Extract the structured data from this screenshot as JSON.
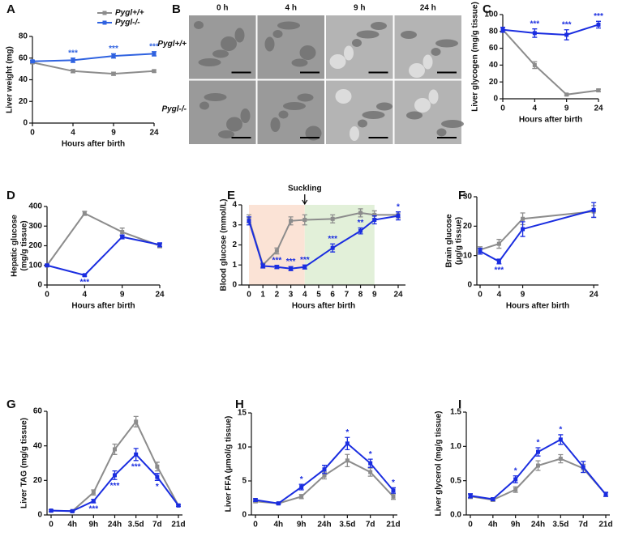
{
  "chart_data": [
    {
      "type": "line",
      "label": "A",
      "ylabel": "Liver weight (mg)",
      "xlabel": "Hours after birth",
      "categories": [
        "0",
        "4",
        "9",
        "24"
      ],
      "ylim": [
        0,
        80
      ],
      "yticks": [
        0,
        20,
        40,
        60,
        80
      ],
      "legend": "top-right",
      "sig_position": "above",
      "series": [
        {
          "name": "Pygl+/+",
          "color": "#8c8c8c",
          "values": [
            56,
            48,
            45.5,
            48
          ],
          "errors": [
            1,
            1.5,
            1.5,
            1
          ],
          "significance": [
            null,
            null,
            null,
            null
          ]
        },
        {
          "name": "Pygl-/-",
          "color": "#2f62e0",
          "values": [
            57,
            58,
            62,
            64
          ],
          "errors": [
            1,
            2,
            2,
            2
          ],
          "significance": [
            null,
            "***",
            "***",
            "***"
          ]
        }
      ]
    },
    {
      "type": "image_grid",
      "label": "B",
      "column_labels": [
        "0 h",
        "4 h",
        "9 h",
        "24 h"
      ],
      "row_labels": [
        "Pygl+/+",
        "Pygl-/-"
      ]
    },
    {
      "type": "line",
      "label": "C",
      "ylabel": "Liver glycogen (mg/g tissue)",
      "xlabel": "Hours after birth",
      "categories": [
        "0",
        "4",
        "9",
        "24"
      ],
      "ylim": [
        0,
        100
      ],
      "yticks": [
        0,
        20,
        40,
        60,
        80,
        100
      ],
      "sig_position": "above",
      "series": [
        {
          "name": "Pygl+/+",
          "color": "#8c8c8c",
          "values": [
            82,
            40,
            5,
            10
          ],
          "errors": [
            3,
            4,
            1,
            1.5
          ],
          "significance": [
            null,
            null,
            null,
            null
          ]
        },
        {
          "name": "Pygl-/-",
          "color": "#1a2de0",
          "values": [
            82,
            78,
            76,
            88
          ],
          "errors": [
            3,
            5,
            6,
            4
          ],
          "significance": [
            null,
            "***",
            "***",
            "***"
          ]
        }
      ]
    },
    {
      "type": "line",
      "label": "D",
      "ylabel": [
        "Hepatic glucose",
        "(mg/g tissue)"
      ],
      "xlabel": "Hours after birth",
      "categories": [
        "0",
        "4",
        "9",
        "24"
      ],
      "ylim": [
        0,
        400
      ],
      "yticks": [
        0,
        100,
        200,
        300,
        400
      ],
      "sig_position": "below",
      "series": [
        {
          "name": "Pygl+/+",
          "color": "#8c8c8c",
          "values": [
            100,
            365,
            270,
            200
          ],
          "errors": [
            5,
            10,
            20,
            10
          ],
          "significance": [
            null,
            null,
            null,
            null
          ]
        },
        {
          "name": "Pygl-/-",
          "color": "#1a2de0",
          "values": [
            100,
            50,
            245,
            205
          ],
          "errors": [
            5,
            5,
            10,
            10
          ],
          "significance": [
            null,
            "***",
            null,
            null
          ]
        }
      ]
    },
    {
      "type": "line",
      "label": "E",
      "ylabel": "Blood glucose (mmol/L)",
      "xlabel": "Hours after birth",
      "x": [
        0,
        1,
        2,
        3,
        4,
        6,
        8,
        9,
        24
      ],
      "xticks": [
        0,
        1,
        2,
        3,
        4,
        5,
        6,
        7,
        8,
        9,
        24
      ],
      "axis_break": true,
      "ylim": [
        0,
        4
      ],
      "yticks": [
        0,
        1,
        2,
        3,
        4
      ],
      "sig_position": "above",
      "annotation": {
        "text": "Suckling",
        "x": 4
      },
      "shaded_regions": [
        {
          "from": 0,
          "to": 4,
          "color": "#fbe3d6"
        },
        {
          "from": 4,
          "to": 9,
          "color": "#e2f0d9"
        }
      ],
      "series": [
        {
          "name": "Pygl+/+",
          "color": "#8c8c8c",
          "values": [
            3.3,
            1.0,
            1.7,
            3.2,
            3.25,
            3.3,
            3.6,
            3.5,
            3.5
          ],
          "errors": [
            0.2,
            0.1,
            0.15,
            0.2,
            0.25,
            0.2,
            0.2,
            0.2,
            0.15
          ],
          "significance": [
            null,
            null,
            null,
            null,
            null,
            null,
            null,
            null,
            null
          ]
        },
        {
          "name": "Pygl-/-",
          "color": "#1a2de0",
          "values": [
            3.2,
            0.95,
            0.9,
            0.82,
            0.9,
            1.85,
            2.7,
            3.25,
            3.45
          ],
          "errors": [
            0.2,
            0.1,
            0.08,
            0.1,
            0.1,
            0.2,
            0.15,
            0.2,
            0.2
          ],
          "significance": [
            null,
            null,
            "***",
            "***",
            "***",
            "***",
            "**",
            null,
            "*"
          ]
        }
      ]
    },
    {
      "type": "line",
      "label": "F",
      "ylabel": [
        "Brain glucose",
        "(µg/g tissue)"
      ],
      "xlabel": "Hours after birth",
      "x": [
        0,
        4,
        9,
        24
      ],
      "xlim": [
        0,
        25
      ],
      "xticks": [
        0,
        4,
        9,
        24
      ],
      "ylim": [
        0,
        30
      ],
      "yticks": [
        0,
        10,
        20,
        30
      ],
      "sig_position": "below",
      "series": [
        {
          "name": "Pygl+/+",
          "color": "#8c8c8c",
          "values": [
            12,
            14,
            22.5,
            25
          ],
          "errors": [
            1,
            1.5,
            2,
            2
          ],
          "significance": [
            null,
            null,
            null,
            null
          ]
        },
        {
          "name": "Pygl-/-",
          "color": "#1a2de0",
          "values": [
            11.5,
            8,
            19,
            25.5
          ],
          "errors": [
            1,
            0.8,
            2.5,
            2.5
          ],
          "significance": [
            null,
            "***",
            null,
            null
          ]
        }
      ]
    },
    {
      "type": "line",
      "label": "G",
      "ylabel": "Liver TAG (mg/g tissue)",
      "categories": [
        "0",
        "4h",
        "9h",
        "24h",
        "3.5d",
        "7d",
        "21d"
      ],
      "ylim": [
        0,
        60
      ],
      "yticks": [
        0,
        20,
        40,
        60
      ],
      "sig_position": "below",
      "series": [
        {
          "name": "Pygl+/+",
          "color": "#8c8c8c",
          "values": [
            2.5,
            2.2,
            13,
            38,
            54,
            28,
            5.5
          ],
          "errors": [
            0.5,
            0.3,
            1.5,
            3,
            3,
            2.5,
            0.5
          ],
          "significance": [
            null,
            null,
            null,
            null,
            null,
            null,
            null
          ]
        },
        {
          "name": "Pygl-/-",
          "color": "#1a2de0",
          "values": [
            2.5,
            2.2,
            8,
            23,
            35,
            22,
            5.5
          ],
          "errors": [
            0.5,
            0.3,
            1,
            2.5,
            3.5,
            2,
            0.5
          ],
          "significance": [
            null,
            null,
            "***",
            "***",
            "***",
            "*",
            null
          ]
        }
      ]
    },
    {
      "type": "line",
      "label": "H",
      "ylabel": "Liver FFA (µmol/g tissue)",
      "categories": [
        "0",
        "4h",
        "9h",
        "24h",
        "3.5d",
        "7d",
        "21d"
      ],
      "ylim": [
        0,
        15
      ],
      "yticks": [
        0,
        5,
        10,
        15
      ],
      "sig_position": "above",
      "series": [
        {
          "name": "Pygl+/+",
          "color": "#8c8c8c",
          "values": [
            2,
            1.7,
            2.7,
            5.8,
            8,
            6.3,
            2.7
          ],
          "errors": [
            0.2,
            0.1,
            0.3,
            0.5,
            0.9,
            0.6,
            0.4
          ],
          "significance": [
            null,
            null,
            null,
            null,
            null,
            null,
            null
          ]
        },
        {
          "name": "Pygl-/-",
          "color": "#1a2de0",
          "values": [
            2.2,
            1.7,
            4.1,
            6.7,
            10.5,
            7.6,
            3.6
          ],
          "errors": [
            0.2,
            0.1,
            0.4,
            0.6,
            0.9,
            0.6,
            0.4
          ],
          "significance": [
            null,
            null,
            "*",
            null,
            "*",
            "*",
            "*"
          ]
        }
      ]
    },
    {
      "type": "line",
      "label": "I",
      "ylabel": "Liver glycerol (mg/g tissue)",
      "categories": [
        "0",
        "4h",
        "9h",
        "24h",
        "3.5d",
        "7d",
        "21d"
      ],
      "ylim": [
        0,
        1.5
      ],
      "yticks": [
        {
          "value": 0,
          "label": "0.0"
        },
        0.5,
        {
          "value": 1,
          "label": "1.0"
        },
        1.5
      ],
      "sig_position": "above",
      "series": [
        {
          "name": "Pygl+/+",
          "color": "#8c8c8c",
          "values": [
            0.27,
            0.22,
            0.37,
            0.72,
            0.82,
            0.68,
            0.3
          ],
          "errors": [
            0.03,
            0.02,
            0.04,
            0.07,
            0.06,
            0.06,
            0.03
          ],
          "significance": [
            null,
            null,
            null,
            null,
            null,
            null,
            null
          ]
        },
        {
          "name": "Pygl-/-",
          "color": "#1a2de0",
          "values": [
            0.28,
            0.23,
            0.52,
            0.92,
            1.1,
            0.7,
            0.3
          ],
          "errors": [
            0.03,
            0.02,
            0.05,
            0.06,
            0.07,
            0.08,
            0.03
          ],
          "significance": [
            null,
            null,
            "*",
            "*",
            "*",
            null,
            null
          ]
        }
      ]
    }
  ]
}
